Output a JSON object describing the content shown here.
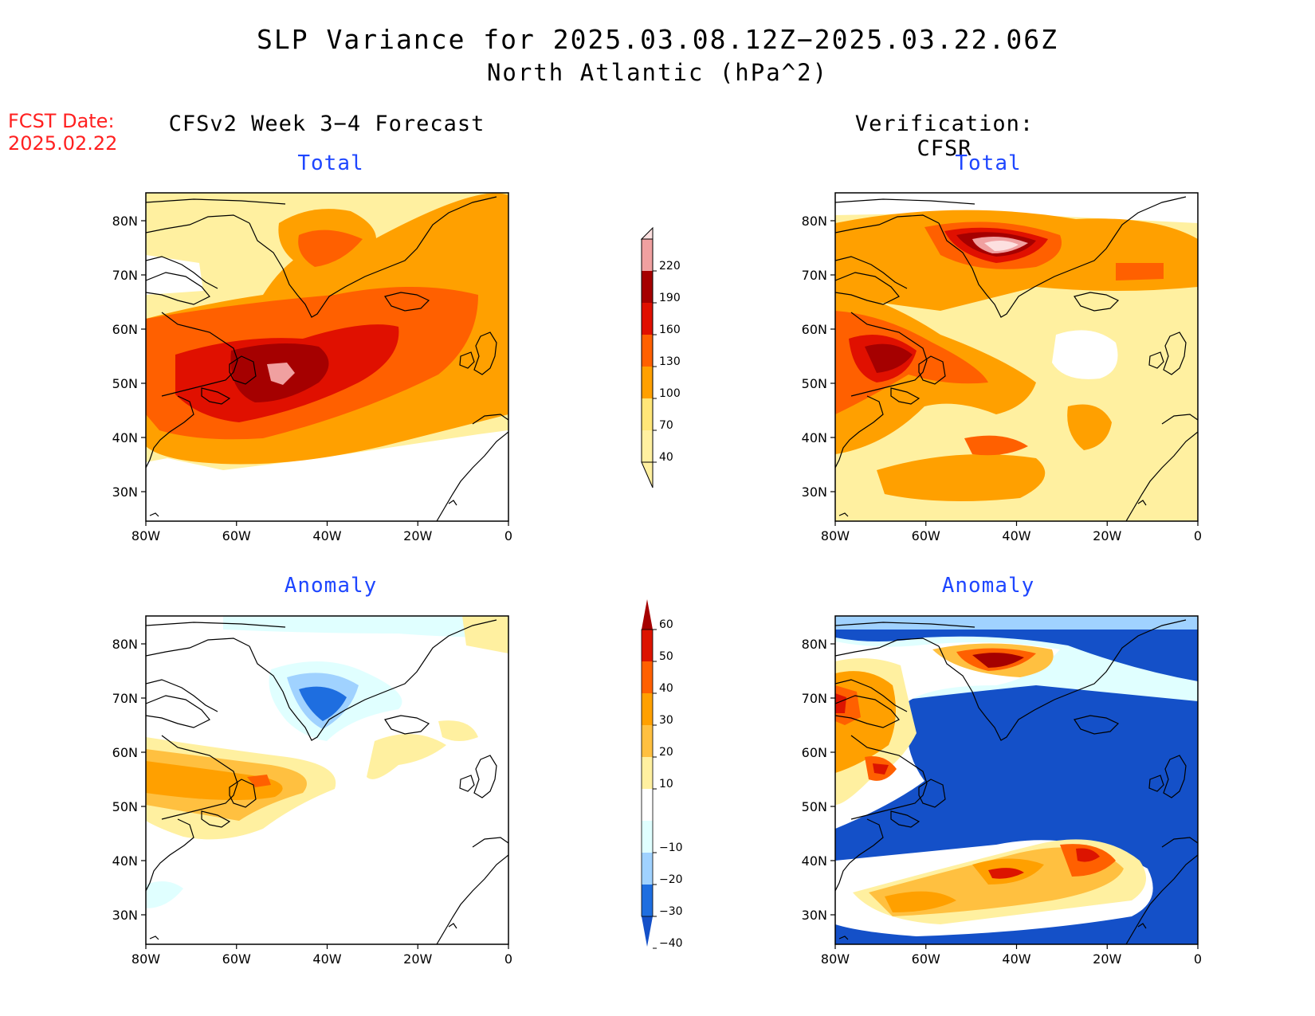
{
  "header": {
    "title": "SLP Variance for 2025.03.08.12Z−2025.03.22.06Z",
    "subtitle": "North Atlantic (hPa^2)",
    "fcst_label": "FCST Date:",
    "fcst_date": "2025.02.22"
  },
  "columns": {
    "forecast": "CFSv2 Week 3−4 Forecast",
    "verification": "Verification: CFSR"
  },
  "panels": {
    "total_label": "Total",
    "anomaly_label": "Anomaly"
  },
  "axes": {
    "lat_labels": [
      "80N",
      "70N",
      "60N",
      "50N",
      "40N",
      "30N"
    ],
    "lon_labels": [
      "80W",
      "60W",
      "40W",
      "20W",
      "0"
    ]
  },
  "colorbars": {
    "total": {
      "levels": [
        "40",
        "70",
        "100",
        "130",
        "160",
        "190",
        "220"
      ],
      "colors": [
        "#fff0a0",
        "#ffe678",
        "#ffa000",
        "#ff6000",
        "#e01000",
        "#a50000",
        "#f0a0a0",
        "#fde0e0"
      ]
    },
    "anomaly": {
      "levels": [
        "60",
        "50",
        "40",
        "30",
        "20",
        "10",
        "−10",
        "−20",
        "−30",
        "−40"
      ],
      "colors": [
        "#a50000",
        "#dc1400",
        "#ff6000",
        "#ffa000",
        "#ffc040",
        "#fff0a0",
        "#ffffff",
        "#e0ffff",
        "#a0d2ff",
        "#1e6ee0",
        "#1450c8"
      ]
    },
    "land_color": "#ffffff",
    "coast_color": "#000000"
  }
}
